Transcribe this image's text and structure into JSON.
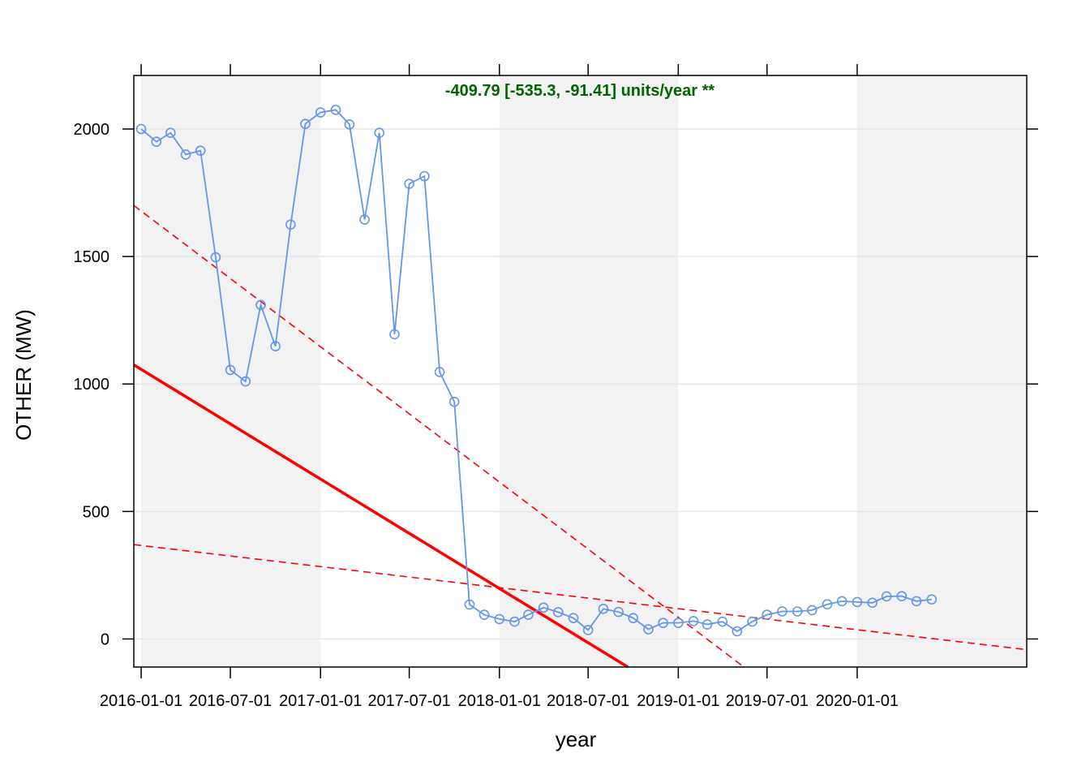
{
  "chart_data": {
    "type": "line",
    "title": "",
    "xlabel": "year",
    "ylabel": "OTHER (MW)",
    "annotation": "-409.79 [-535.3, -91.41] units/year **",
    "ylim": [
      -110,
      2210
    ],
    "xlim": [
      "2015-12-17",
      "2020-12-12"
    ],
    "y_ticks": [
      0,
      500,
      1000,
      1500,
      2000
    ],
    "x_ticks": [
      "2016-01-01",
      "2016-07-01",
      "2017-01-01",
      "2017-07-01",
      "2018-01-01",
      "2018-07-01",
      "2019-01-01",
      "2019-07-01",
      "2020-01-01"
    ],
    "shaded_years": [
      [
        "2016-01-01",
        "2017-01-01"
      ],
      [
        "2018-01-01",
        "2019-01-01"
      ],
      [
        "2020-01-01",
        "2020-12-12"
      ]
    ],
    "grid": "horizontal",
    "series": [
      {
        "x": [
          "2016-01-01",
          "2016-02-01",
          "2016-03-01",
          "2016-04-01",
          "2016-05-01",
          "2016-06-01",
          "2016-07-01",
          "2016-08-01",
          "2016-09-01",
          "2016-10-01",
          "2016-11-01",
          "2016-12-01",
          "2017-01-01",
          "2017-02-01",
          "2017-03-01",
          "2017-04-01",
          "2017-05-01",
          "2017-06-01",
          "2017-07-01",
          "2017-08-01",
          "2017-09-01",
          "2017-10-01",
          "2017-11-01",
          "2017-12-01",
          "2018-01-01",
          "2018-02-01",
          "2018-03-01",
          "2018-04-01",
          "2018-05-01",
          "2018-06-01",
          "2018-07-01",
          "2018-08-01",
          "2018-09-01",
          "2018-10-01",
          "2018-11-01",
          "2018-12-01",
          "2019-01-01",
          "2019-02-01",
          "2019-03-01",
          "2019-04-01",
          "2019-05-01",
          "2019-06-01",
          "2019-07-01",
          "2019-08-01",
          "2019-09-01",
          "2019-10-01",
          "2019-11-01",
          "2019-12-01",
          "2020-01-01",
          "2020-02-01",
          "2020-03-01",
          "2020-04-01",
          "2020-05-01",
          "2020-06-01"
        ],
        "values": [
          2000,
          1950,
          1985,
          1900,
          1915,
          1497,
          1055,
          1010,
          1310,
          1148,
          1625,
          2020,
          2065,
          2075,
          2018,
          1645,
          1985,
          1195,
          1785,
          1815,
          1047,
          930,
          135,
          95,
          78,
          68,
          95,
          123,
          105,
          82,
          35,
          118,
          106,
          82,
          38,
          63,
          63,
          70,
          57,
          68,
          30,
          68,
          95,
          108,
          108,
          113,
          136,
          148,
          145,
          142,
          167,
          168,
          148,
          155
        ],
        "color": "#6495ED"
      }
    ],
    "trend_lines": [
      {
        "style": "solid",
        "color": "#FF0000",
        "x": [
          "2015-12-17",
          "2018-09-20"
        ],
        "y": [
          1075,
          -110
        ]
      },
      {
        "style": "dashed",
        "color": "#FF0000",
        "x": [
          "2015-12-17",
          "2019-05-15"
        ],
        "y": [
          1700,
          -110
        ]
      },
      {
        "style": "dashed",
        "color": "#FF0000",
        "x": [
          "2015-12-17",
          "2020-12-12"
        ],
        "y": [
          370,
          -42
        ]
      }
    ],
    "colors": {
      "series": "#6495ED",
      "trend": "#FF0000",
      "annotation": "#006400",
      "shade": "#F2F2F2",
      "grid": "#E6E6E6"
    }
  }
}
